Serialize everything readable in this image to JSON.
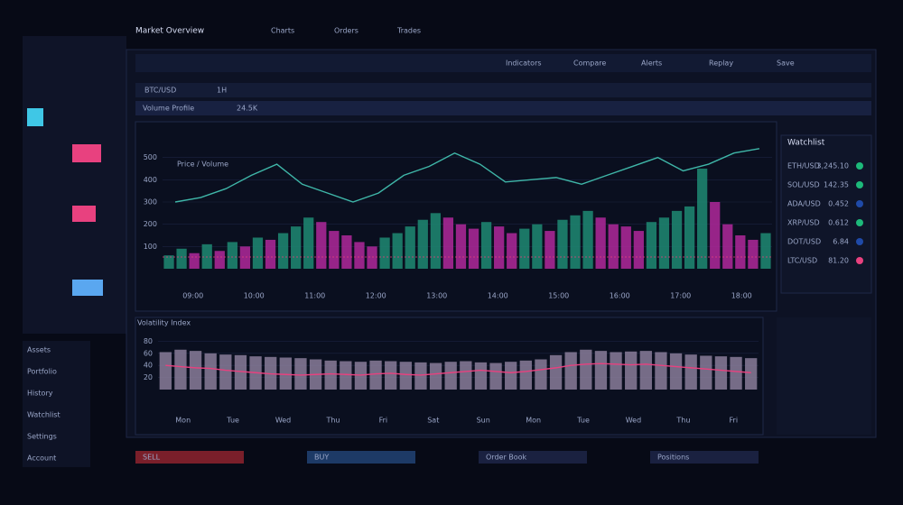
{
  "header": {
    "title": "Market Overview",
    "tabs": [
      "Charts",
      "Orders",
      "Trades"
    ]
  },
  "sidebar": {
    "items": [
      "Assets",
      "Portfolio",
      "History",
      "Watchlist",
      "Settings",
      "Account"
    ]
  },
  "toolbar": {
    "symbol": "BTC/USD",
    "interval": "1H",
    "items": [
      "Indicators",
      "Compare",
      "Alerts",
      "Replay",
      "Save"
    ]
  },
  "ticker": {
    "label": "Volume Profile",
    "value": "24.5K"
  },
  "main_chart": {
    "type": "bar",
    "legend": "Price / Volume",
    "ylim": [
      0,
      600
    ],
    "yticks": [
      100,
      200,
      300,
      400,
      500
    ],
    "values": [
      60,
      90,
      70,
      110,
      80,
      120,
      100,
      140,
      130,
      160,
      190,
      230,
      210,
      170,
      150,
      120,
      100,
      140,
      160,
      190,
      220,
      250,
      230,
      200,
      180,
      210,
      190,
      160,
      180,
      200,
      170,
      220,
      240,
      260,
      230,
      200,
      190,
      170,
      210,
      230,
      260,
      280,
      450,
      300,
      200,
      150,
      130,
      160
    ],
    "line": [
      300,
      320,
      360,
      420,
      470,
      380,
      340,
      300,
      340,
      420,
      460,
      520,
      470,
      390,
      400,
      410,
      380,
      420,
      460,
      500,
      440,
      470,
      520,
      540
    ],
    "xticks": [
      "09:00",
      "10:00",
      "11:00",
      "12:00",
      "13:00",
      "14:00",
      "15:00",
      "16:00",
      "17:00",
      "18:00"
    ]
  },
  "lower_chart": {
    "type": "bar",
    "legend": "Volatility Index",
    "ylim": [
      0,
      100
    ],
    "yticks": [
      20,
      40,
      60,
      80
    ],
    "values": [
      62,
      66,
      64,
      60,
      58,
      57,
      55,
      54,
      53,
      52,
      50,
      48,
      47,
      46,
      48,
      47,
      46,
      45,
      44,
      46,
      47,
      45,
      44,
      46,
      48,
      50,
      57,
      62,
      66,
      64,
      62,
      63,
      64,
      62,
      60,
      58,
      56,
      55,
      54,
      52
    ],
    "line": [
      40,
      38,
      36,
      35,
      32,
      30,
      28,
      26,
      25,
      24,
      25,
      26,
      25,
      24,
      26,
      27,
      25,
      24,
      26,
      28,
      30,
      32,
      30,
      28,
      30,
      33,
      36,
      40,
      42,
      43,
      42,
      41,
      42,
      40,
      38,
      36,
      34,
      32,
      30,
      28
    ],
    "xticks": [
      "Mon",
      "Tue",
      "Wed",
      "Thu",
      "Fri",
      "Sat",
      "Sun",
      "Mon",
      "Tue",
      "Wed",
      "Thu",
      "Fri"
    ]
  },
  "watchlist": {
    "title": "Watchlist",
    "rows": [
      [
        "ETH/USD",
        "3,245.10"
      ],
      [
        "SOL/USD",
        "142.35"
      ],
      [
        "ADA/USD",
        "0.452"
      ],
      [
        "XRP/USD",
        "0.612"
      ],
      [
        "DOT/USD",
        "6.84"
      ],
      [
        "LTC/USD",
        "81.20"
      ]
    ]
  },
  "bottom": {
    "buttons": [
      "SELL",
      "BUY",
      "Order Book",
      "Positions"
    ]
  }
}
